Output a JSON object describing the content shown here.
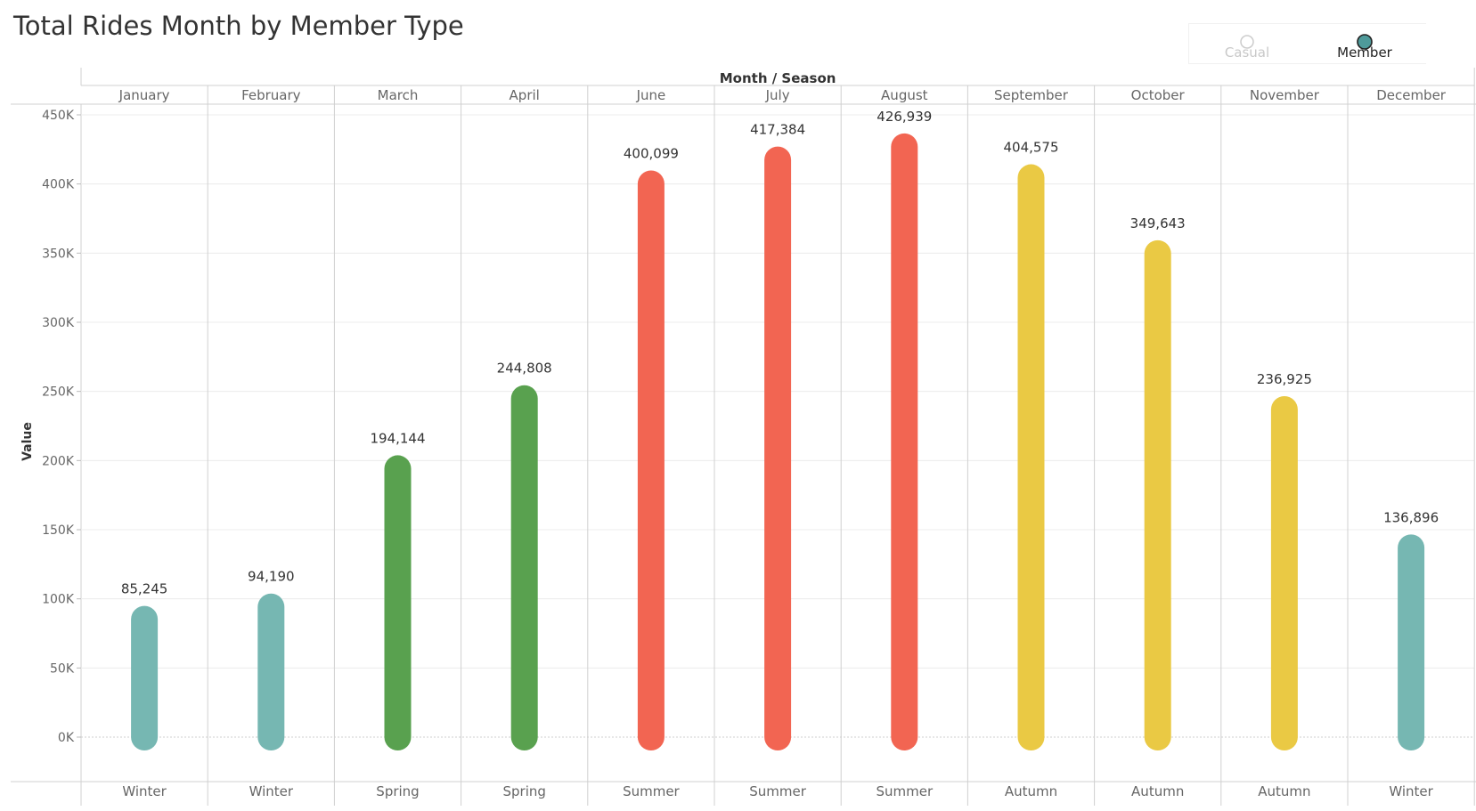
{
  "title": "Total Rides Month by Member Type",
  "legend": {
    "items": [
      {
        "label": "Casual",
        "selected": false,
        "color": "#cccccc"
      },
      {
        "label": "Member",
        "selected": true,
        "color": "#4e9a9a"
      }
    ]
  },
  "chart_data": {
    "type": "bar",
    "title": "Total Rides Month by Member Type",
    "column_header": "Month / Season",
    "ylabel": "Value",
    "ylim": [
      0,
      450000
    ],
    "yticks": [
      {
        "value": 0,
        "label": "0K"
      },
      {
        "value": 50000,
        "label": "50K"
      },
      {
        "value": 100000,
        "label": "100K"
      },
      {
        "value": 150000,
        "label": "150K"
      },
      {
        "value": 200000,
        "label": "200K"
      },
      {
        "value": 250000,
        "label": "250K"
      },
      {
        "value": 300000,
        "label": "300K"
      },
      {
        "value": 350000,
        "label": "350K"
      },
      {
        "value": 400000,
        "label": "400K"
      },
      {
        "value": 450000,
        "label": "450K"
      }
    ],
    "grid": true,
    "categories": [
      "January",
      "February",
      "March",
      "April",
      "June",
      "July",
      "August",
      "September",
      "October",
      "November",
      "December"
    ],
    "seasons": [
      "Winter",
      "Winter",
      "Spring",
      "Spring",
      "Summer",
      "Summer",
      "Summer",
      "Autumn",
      "Autumn",
      "Autumn",
      "Winter"
    ],
    "values": [
      85245,
      94190,
      194144,
      244808,
      400099,
      417384,
      426939,
      404575,
      349643,
      236925,
      136896
    ],
    "value_labels": [
      "85,245",
      "94,190",
      "194,144",
      "244,808",
      "400,099",
      "417,384",
      "426,939",
      "404,575",
      "349,643",
      "236,925",
      "136,896"
    ],
    "season_colors": {
      "Winter": "#76b7b2",
      "Spring": "#59a14f",
      "Summer": "#f26552",
      "Autumn": "#eac944"
    }
  }
}
